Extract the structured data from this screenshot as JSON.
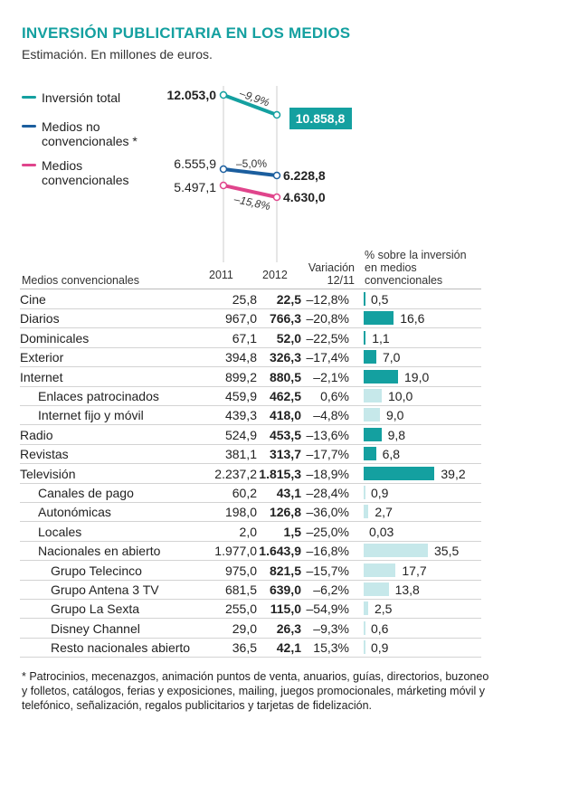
{
  "title": "INVERSIÓN PUBLICITARIA EN LOS MEDIOS",
  "subtitle": "Estimación. En millones de euros.",
  "legend": {
    "total": "Inversión total",
    "no_conv_1": "Medios no",
    "no_conv_2": "convencionales *",
    "conv_1": "Medios",
    "conv_2": "convencionales"
  },
  "colors": {
    "total": "#14a0a0",
    "no_conv": "#1b5e9e",
    "conv": "#e0458c",
    "bar_main": "#14a0a0",
    "bar_light": "#c6e8ea"
  },
  "slope_labels": {
    "total_2011": "12.053,0",
    "total_2012": "10.858,8",
    "total_var": "–9,9%",
    "no_conv_2011": "6.555,9",
    "no_conv_2012": "6.228,8",
    "no_conv_var": "–5,0%",
    "conv_2011": "5.497,1",
    "conv_2012": "4.630,0",
    "conv_var": "–15,8%"
  },
  "table_headers": {
    "name": "Medios convencionales",
    "y2011": "2011",
    "y2012": "2012",
    "var_1": "Variación",
    "var_2": "12/11",
    "share_1": "% sobre la inversión",
    "share_2": "en medios",
    "share_3": "convencionales"
  },
  "chart_data": [
    {
      "type": "line",
      "x": [
        "2011",
        "2012"
      ],
      "series": [
        {
          "name": "Inversión total",
          "values": [
            12053.0,
            10858.8
          ],
          "change_pct": -9.9
        },
        {
          "name": "Medios no convencionales *",
          "values": [
            6555.9,
            6228.8
          ],
          "change_pct": -5.0
        },
        {
          "name": "Medios convencionales",
          "values": [
            5497.1,
            4630.0
          ],
          "change_pct": -15.8
        }
      ]
    },
    {
      "type": "table",
      "rows": [
        {
          "name": "Cine",
          "v2011": "25,8",
          "v2012": "22,5",
          "var": "–12,8%",
          "share": 0.5,
          "share_label": "0,5",
          "level": 0
        },
        {
          "name": "Diarios",
          "v2011": "967,0",
          "v2012": "766,3",
          "var": "–20,8%",
          "share": 16.6,
          "share_label": "16,6",
          "level": 0
        },
        {
          "name": "Dominicales",
          "v2011": "67,1",
          "v2012": "52,0",
          "var": "–22,5%",
          "share": 1.1,
          "share_label": "1,1",
          "level": 0
        },
        {
          "name": "Exterior",
          "v2011": "394,8",
          "v2012": "326,3",
          "var": "–17,4%",
          "share": 7.0,
          "share_label": "7,0",
          "level": 0
        },
        {
          "name": "Internet",
          "v2011": "899,2",
          "v2012": "880,5",
          "var": "–2,1%",
          "share": 19.0,
          "share_label": "19,0",
          "level": 0
        },
        {
          "name": "Enlaces patrocinados",
          "v2011": "459,9",
          "v2012": "462,5",
          "var": "0,6%",
          "share": 10.0,
          "share_label": "10,0",
          "level": 1
        },
        {
          "name": "Internet fijo y móvil",
          "v2011": "439,3",
          "v2012": "418,0",
          "var": "–4,8%",
          "share": 9.0,
          "share_label": "9,0",
          "level": 1
        },
        {
          "name": "Radio",
          "v2011": "524,9",
          "v2012": "453,5",
          "var": "–13,6%",
          "share": 9.8,
          "share_label": "9,8",
          "level": 0
        },
        {
          "name": "Revistas",
          "v2011": "381,1",
          "v2012": "313,7",
          "var": "–17,7%",
          "share": 6.8,
          "share_label": "6,8",
          "level": 0
        },
        {
          "name": "Televisión",
          "v2011": "2.237,2",
          "v2012": "1.815,3",
          "var": "–18,9%",
          "share": 39.2,
          "share_label": "39,2",
          "level": 0
        },
        {
          "name": "Canales de pago",
          "v2011": "60,2",
          "v2012": "43,1",
          "var": "–28,4%",
          "share": 0.9,
          "share_label": "0,9",
          "level": 1
        },
        {
          "name": "Autonómicas",
          "v2011": "198,0",
          "v2012": "126,8",
          "var": "–36,0%",
          "share": 2.7,
          "share_label": "2,7",
          "level": 1
        },
        {
          "name": "Locales",
          "v2011": "2,0",
          "v2012": "1,5",
          "var": "–25,0%",
          "share": 0.03,
          "share_label": "0,03",
          "level": 1
        },
        {
          "name": "Nacionales en abierto",
          "v2011": "1.977,0",
          "v2012": "1.643,9",
          "var": "–16,8%",
          "share": 35.5,
          "share_label": "35,5",
          "level": 1
        },
        {
          "name": "Grupo Telecinco",
          "v2011": "975,0",
          "v2012": "821,5",
          "var": "–15,7%",
          "share": 17.7,
          "share_label": "17,7",
          "level": 2
        },
        {
          "name": "Grupo Antena 3 TV",
          "v2011": "681,5",
          "v2012": "639,0",
          "var": "–6,2%",
          "share": 13.8,
          "share_label": "13,8",
          "level": 2
        },
        {
          "name": "Grupo La Sexta",
          "v2011": "255,0",
          "v2012": "115,0",
          "var": "–54,9%",
          "share": 2.5,
          "share_label": "2,5",
          "level": 2
        },
        {
          "name": "Disney Channel",
          "v2011": "29,0",
          "v2012": "26,3",
          "var": "–9,3%",
          "share": 0.6,
          "share_label": "0,6",
          "level": 2
        },
        {
          "name": "Resto nacionales abierto",
          "v2011": "36,5",
          "v2012": "42,1",
          "var": "15,3%",
          "share": 0.9,
          "share_label": "0,9",
          "level": 2
        }
      ]
    }
  ],
  "footnote": "* Patrocinios, mecenazgos, animación puntos de venta, anuarios, guías, directorios, buzoneo y folletos, catálogos, ferias y exposiciones, mailing, juegos promocionales, márketing móvil y telefónico, señalización, regalos publicitarios y tarjetas de fidelización."
}
